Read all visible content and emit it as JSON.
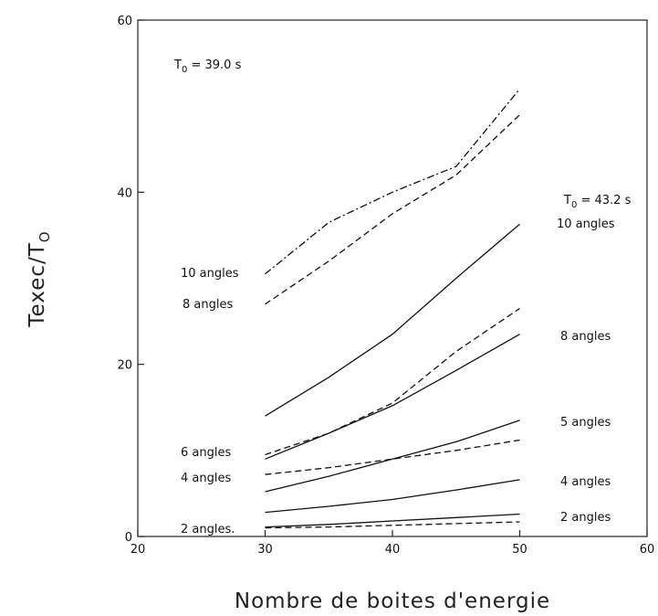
{
  "chart_data": {
    "type": "line",
    "xlabel": "Nombre de boites d'energie",
    "ylabel": "Texec/T",
    "ylabel_subscript": "O",
    "xlim": [
      20,
      60
    ],
    "ylim": [
      0,
      60
    ],
    "xticks": [
      "20",
      "30",
      "40",
      "50",
      "60"
    ],
    "yticks": [
      "0",
      "20",
      "40",
      "60"
    ],
    "grid": false,
    "annotations": {
      "t0_left": "T",
      "t0_left_sub": "0",
      "t0_left_value": " = 39.0  s",
      "t0_right": "T",
      "t0_right_sub": "0",
      "t0_right_value": " = 43.2  s",
      "left_labels": [
        "10 angles",
        "8 angles",
        "6 angles",
        "4 angles",
        "2 angles."
      ],
      "right_labels": [
        "10 angles",
        "8 angles",
        "5 angles",
        "4 angles",
        "2 angles"
      ]
    },
    "series": [
      {
        "style": "dashdot",
        "x": [
          30,
          35,
          40,
          45,
          50
        ],
        "y": [
          30.5,
          36.5,
          40,
          43,
          52
        ]
      },
      {
        "style": "dashed",
        "x": [
          30,
          35,
          40,
          45,
          50
        ],
        "y": [
          27,
          32,
          37.5,
          42,
          49
        ]
      },
      {
        "style": "dashed",
        "x": [
          30,
          35,
          40,
          45,
          50
        ],
        "y": [
          9.5,
          12,
          15.5,
          21.5,
          26.5
        ]
      },
      {
        "style": "dashed",
        "x": [
          30,
          35,
          40,
          45,
          50
        ],
        "y": [
          7.2,
          8,
          9,
          10,
          11.2
        ]
      },
      {
        "style": "dashed",
        "x": [
          30,
          35,
          40,
          45,
          50
        ],
        "y": [
          1,
          1.1,
          1.3,
          1.5,
          1.7
        ]
      },
      {
        "style": "solid",
        "x": [
          30,
          35,
          40,
          45,
          50
        ],
        "y": [
          14,
          18.5,
          23.5,
          30,
          36.3
        ]
      },
      {
        "style": "solid",
        "x": [
          30,
          35,
          40,
          45,
          50
        ],
        "y": [
          9,
          12,
          15.2,
          19.3,
          23.5
        ]
      },
      {
        "style": "solid",
        "x": [
          30,
          35,
          40,
          45,
          50
        ],
        "y": [
          5.2,
          7,
          9,
          11,
          13.5
        ]
      },
      {
        "style": "solid",
        "x": [
          30,
          35,
          40,
          45,
          50
        ],
        "y": [
          2.8,
          3.5,
          4.3,
          5.4,
          6.6
        ]
      },
      {
        "style": "solid",
        "x": [
          30,
          35,
          40,
          45,
          50
        ],
        "y": [
          1.1,
          1.4,
          1.8,
          2.2,
          2.6
        ]
      }
    ]
  }
}
